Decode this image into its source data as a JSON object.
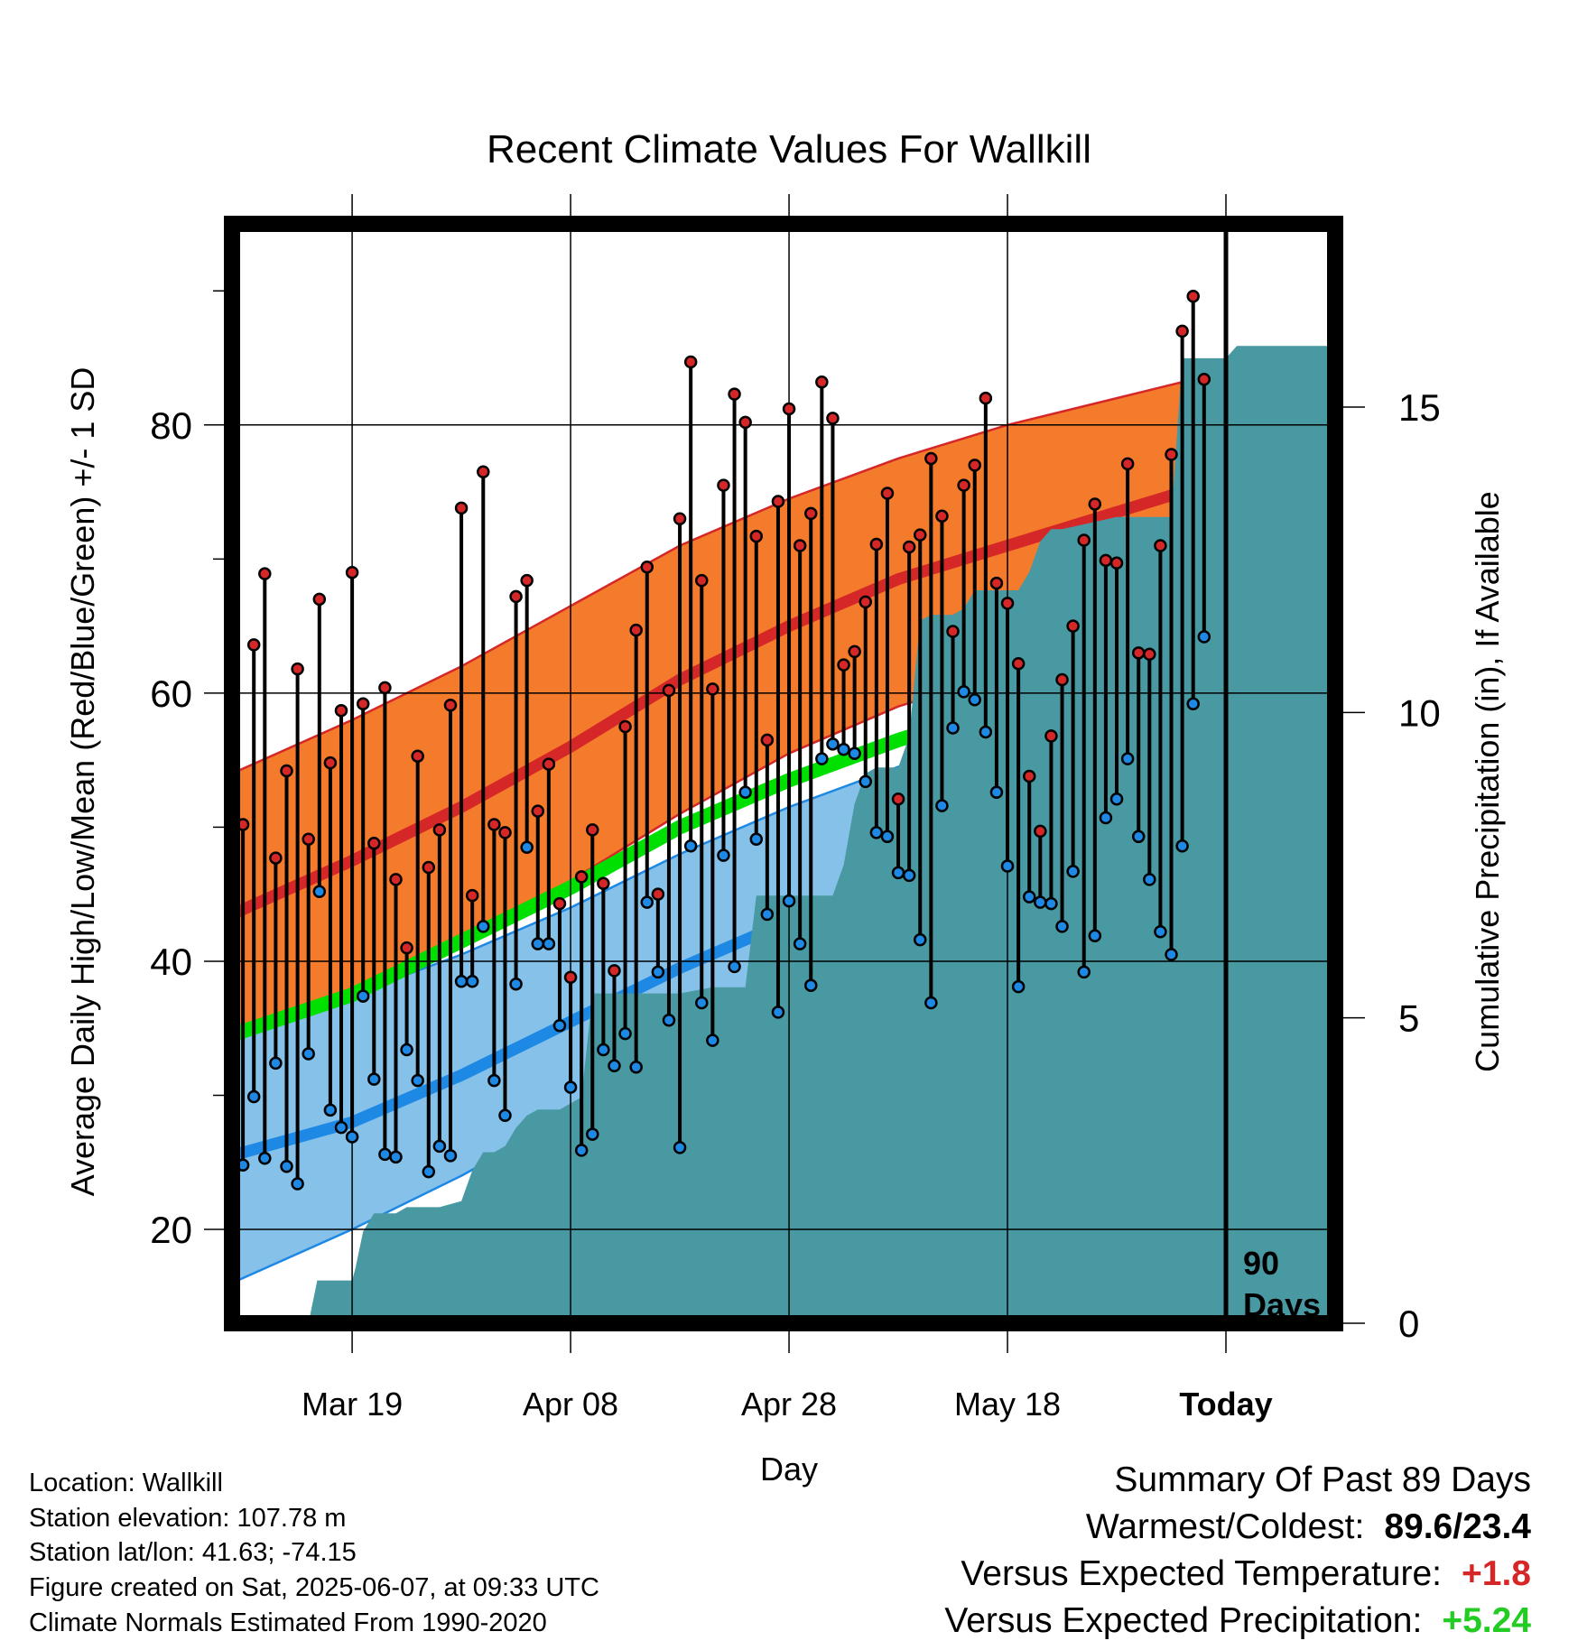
{
  "chart_data": {
    "type": "line",
    "title": "Recent Climate Values For Wallkill",
    "xlabel": "Day",
    "ylabel": "Average Daily High/Low/Mean (Red/Blue/Green) +/- 1 SD",
    "y2label": "Cumulative Precipitation (in), If Available",
    "xticks": [
      {
        "day": 10,
        "label": "Mar 19"
      },
      {
        "day": 30,
        "label": "Apr 08"
      },
      {
        "day": 50,
        "label": "Apr 28"
      },
      {
        "day": 70,
        "label": "May 18"
      },
      {
        "day": 90,
        "label": "Today"
      }
    ],
    "xlim": [
      -1,
      100
    ],
    "ylim": [
      13,
      95
    ],
    "yticks": [
      20,
      40,
      60,
      80
    ],
    "y2lim": [
      0,
      18
    ],
    "y2ticks": [
      0,
      5,
      10,
      15
    ],
    "grid": true,
    "today_marker": {
      "day": 90,
      "label_line1": "90",
      "label_line2": "Days"
    },
    "normals": {
      "day": [
        -1,
        10,
        20,
        30,
        40,
        50,
        60,
        70,
        80,
        90,
        100
      ],
      "high_mean": [
        43.5,
        47.5,
        51.5,
        56,
        61,
        65,
        68.5,
        71,
        73.5,
        76,
        79
      ],
      "high_upper": [
        54,
        58,
        62,
        66.5,
        71,
        74.5,
        77.5,
        80,
        82,
        84,
        85.5
      ],
      "high_lower": [
        34,
        37.5,
        41.5,
        46,
        51,
        55.5,
        59,
        61.5,
        64,
        68,
        71.5
      ],
      "mean": [
        34.5,
        37.5,
        41.5,
        45.5,
        50,
        53.5,
        56.5,
        59,
        61.5,
        65,
        68.5
      ],
      "low_mean": [
        25.5,
        28,
        31.5,
        35.5,
        39.5,
        43,
        46,
        48.5,
        51.5,
        54.5,
        58
      ],
      "low_upper": [
        35,
        37.5,
        40.5,
        44,
        48,
        51.5,
        54.5,
        57,
        59.5,
        61.5,
        64
      ],
      "low_lower": [
        16,
        20,
        24,
        28.5,
        32.5,
        36,
        39.5,
        42.5,
        45,
        48.5,
        52.5
      ]
    },
    "series": [
      {
        "name": "High",
        "color": "#d62728",
        "values": [
          50.2,
          63.6,
          68.9,
          47.7,
          54.2,
          61.8,
          49.1,
          67,
          54.8,
          58.7,
          69,
          59.2,
          48.8,
          60.4,
          46.1,
          41,
          55.3,
          47,
          49.8,
          59.1,
          73.8,
          44.9,
          76.5,
          50.2,
          49.6,
          67.2,
          68.4,
          51.2,
          54.7,
          44.3,
          38.8,
          46.3,
          49.8,
          45.8,
          39.3,
          57.5,
          64.7,
          69.4,
          45,
          60.2,
          73,
          84.7,
          68.4,
          60.3,
          75.5,
          82.3,
          80.2,
          71.7,
          56.5,
          74.3,
          81.2,
          71,
          73.4,
          83.2,
          80.5,
          62.1,
          63.1,
          66.8,
          71.1,
          74.9,
          52.1,
          70.9,
          71.8,
          77.5,
          73.2,
          64.6,
          75.5,
          77,
          82,
          68.2,
          66.7,
          62.2,
          53.8,
          49.7,
          56.8,
          61,
          65,
          71.4,
          74.1,
          69.9,
          69.7,
          77.1,
          63,
          62.9,
          71,
          77.8,
          87,
          89.6,
          83.4
        ]
      },
      {
        "name": "Low",
        "color": "#1e88e5",
        "values": [
          24.8,
          29.9,
          25.3,
          32.4,
          24.7,
          23.4,
          33.1,
          45.2,
          28.9,
          27.6,
          26.9,
          37.4,
          31.2,
          25.6,
          25.4,
          33.4,
          31.1,
          24.3,
          26.2,
          25.5,
          38.5,
          38.5,
          42.6,
          31.1,
          28.5,
          38.3,
          48.5,
          41.3,
          41.3,
          35.2,
          30.6,
          25.9,
          27.1,
          33.4,
          32.2,
          34.6,
          32.1,
          44.4,
          39.2,
          35.6,
          26.1,
          48.6,
          36.9,
          34.1,
          47.9,
          39.6,
          52.6,
          49.1,
          43.5,
          36.2,
          44.5,
          41.3,
          38.2,
          55.1,
          56.2,
          55.8,
          55.5,
          53.4,
          49.6,
          49.3,
          46.6,
          46.4,
          41.6,
          36.9,
          51.6,
          57.4,
          60.1,
          59.5,
          57.1,
          52.6,
          47.1,
          38.1,
          44.8,
          44.4,
          44.3,
          42.6,
          46.7,
          39.2,
          41.9,
          50.7,
          52.1,
          55.1,
          49.3,
          46.1,
          42.2,
          40.5,
          48.6,
          59.2,
          64.2
        ]
      },
      {
        "name": "Cumulative Precipitation",
        "color": "#4899a2",
        "day": [
          6,
          6.8,
          8,
          9,
          10,
          10.3,
          11,
          12,
          13,
          14,
          15,
          16.5,
          18,
          20,
          21,
          22,
          23,
          24,
          25,
          26,
          27,
          28,
          29,
          31,
          32,
          33,
          34,
          35,
          37,
          40,
          43,
          45,
          46,
          47,
          49,
          50,
          52,
          54,
          55,
          56,
          57,
          58,
          59,
          60,
          61,
          62,
          63,
          64,
          65,
          66,
          67,
          68,
          70,
          71,
          72,
          73,
          74,
          75,
          80,
          82,
          85,
          86,
          87,
          88,
          89,
          90,
          91,
          95,
          100
        ],
        "values": [
          0,
          0.7,
          0.7,
          0.7,
          0.7,
          0.9,
          1.5,
          1.8,
          1.8,
          1.8,
          1.9,
          1.9,
          1.9,
          2,
          2.5,
          2.8,
          2.8,
          2.9,
          3.2,
          3.4,
          3.5,
          3.5,
          3.5,
          3.7,
          5.4,
          5.4,
          5.4,
          5.4,
          5.4,
          5.4,
          5.5,
          5.5,
          5.5,
          7,
          7,
          7,
          7,
          7,
          7.5,
          8.5,
          9,
          9.1,
          9.1,
          9.1,
          9.6,
          11.5,
          11.6,
          11.6,
          11.6,
          11.7,
          12,
          12,
          12,
          12,
          12.3,
          12.8,
          13,
          13,
          13.2,
          13.2,
          13.2,
          15.8,
          15.8,
          15.8,
          15.8,
          15.8,
          16,
          16,
          16
        ]
      }
    ],
    "normal_series": [
      {
        "name": "Normal High +/- 1 SD",
        "color": "#f47a2c"
      },
      {
        "name": "Normal High",
        "color": "#d62728"
      },
      {
        "name": "Normal Mean",
        "color": "#00e000"
      },
      {
        "name": "Normal Low",
        "color": "#1e88e5"
      },
      {
        "name": "Normal Low +/- 1 SD",
        "color": "#85c1e8"
      }
    ]
  },
  "footer": {
    "location": "Location: Wallkill",
    "elevation": "Station elevation: 107.78 m",
    "latlon": "Station lat/lon: 41.63; -74.15",
    "created": "Figure created on Sat, 2025-06-07, at 09:33 UTC",
    "normals": "Climate Normals Estimated From 1990-2020"
  },
  "summary": {
    "heading": "Summary Of Past 89 Days",
    "warmest_label": "Warmest/Coldest:",
    "warmest_value": "89.6/23.4",
    "temp_label": "Versus Expected Temperature:",
    "temp_value": "+1.8",
    "temp_color": "#d62728",
    "precip_label": "Versus Expected Precipitation:",
    "precip_value": "+5.24",
    "precip_color": "#22cc22"
  }
}
